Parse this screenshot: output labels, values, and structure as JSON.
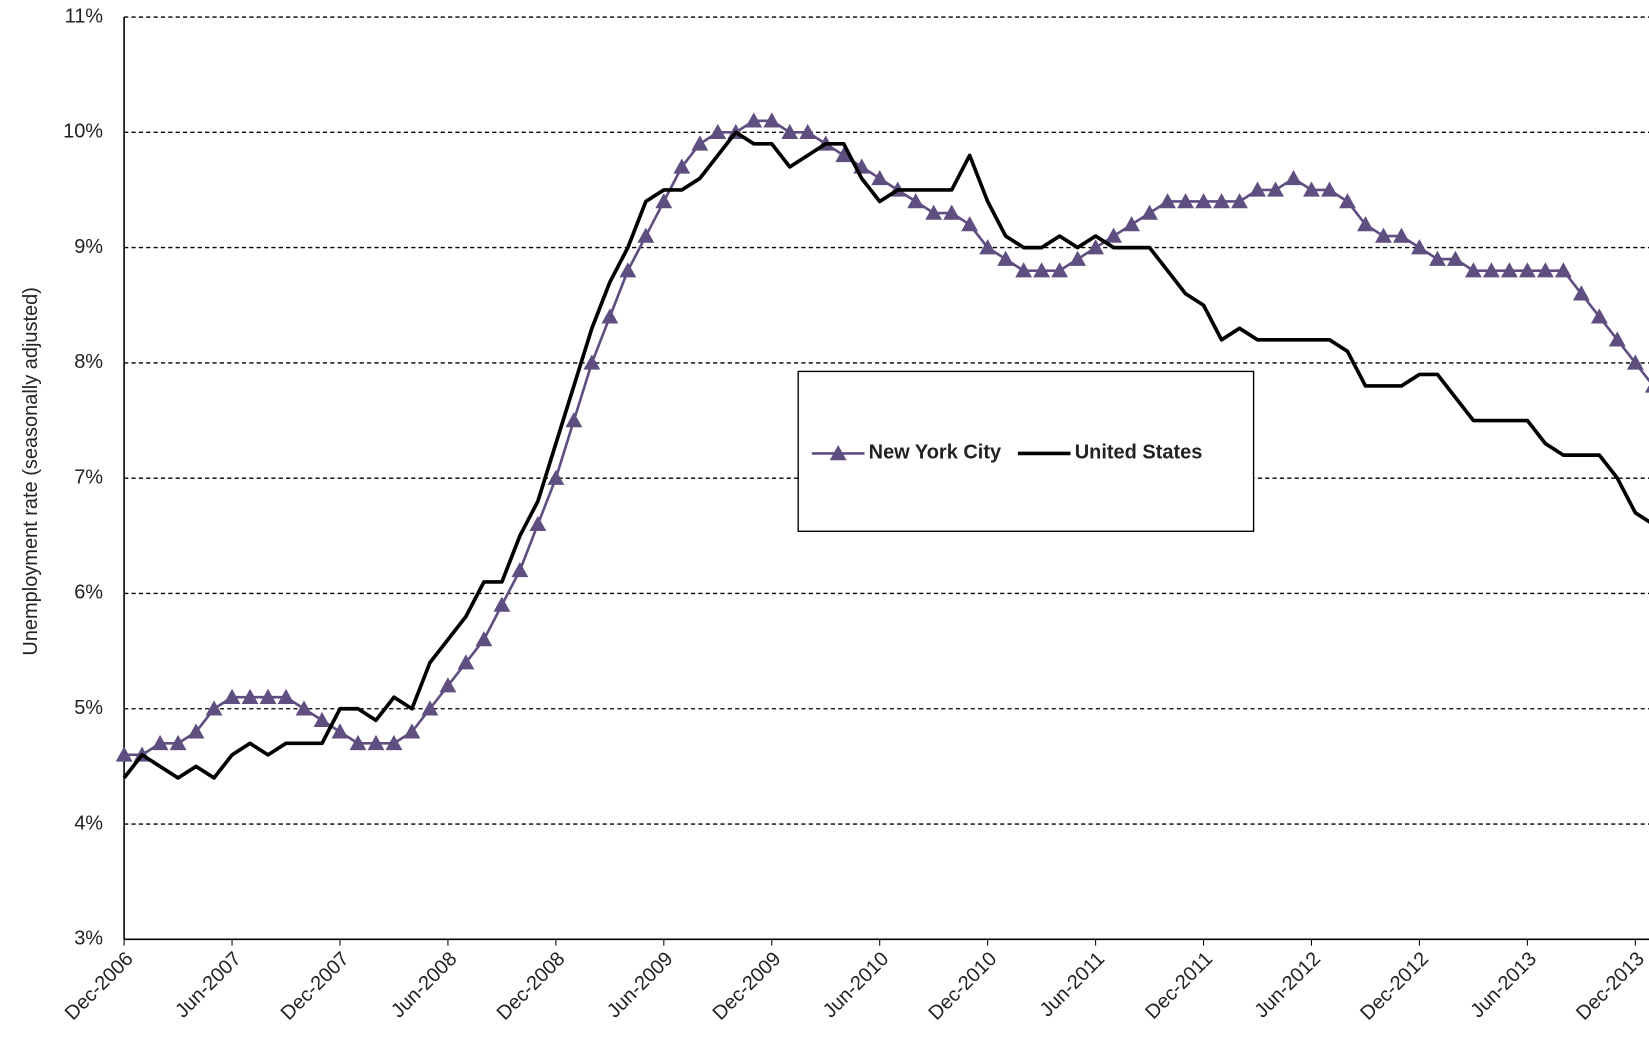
{
  "chart_data": {
    "type": "line",
    "y_label": "Unemployment rate (seasonally adjusted)",
    "categories": [
      "Dec-2006",
      null,
      null,
      null,
      null,
      null,
      "Jun-2007",
      null,
      null,
      null,
      null,
      null,
      "Dec-2007",
      null,
      null,
      null,
      null,
      null,
      "Jun-2008",
      null,
      null,
      null,
      null,
      null,
      "Dec-2008",
      null,
      null,
      null,
      null,
      null,
      "Jun-2009",
      null,
      null,
      null,
      null,
      null,
      "Dec-2009",
      null,
      null,
      null,
      null,
      null,
      "Jun-2010",
      null,
      null,
      null,
      null,
      null,
      "Dec-2010",
      null,
      null,
      null,
      null,
      null,
      "Jun-2011",
      null,
      null,
      null,
      null,
      null,
      "Dec-2011",
      null,
      null,
      null,
      null,
      null,
      "Jun-2012",
      null,
      null,
      null,
      null,
      null,
      "Dec-2012",
      null,
      null,
      null,
      null,
      null,
      "Jun-2013",
      null,
      null,
      null,
      null,
      null,
      "Dec-2013",
      null
    ],
    "series": [
      {
        "name": "New York City",
        "color": "#5f4f80",
        "marker": "triangle",
        "values": [
          4.6,
          4.6,
          4.7,
          4.7,
          4.8,
          5.0,
          5.1,
          5.1,
          5.1,
          5.1,
          5.0,
          4.9,
          4.8,
          4.7,
          4.7,
          4.7,
          4.8,
          5.0,
          5.2,
          5.4,
          5.6,
          5.9,
          6.2,
          6.6,
          7.0,
          7.5,
          8.0,
          8.4,
          8.8,
          9.1,
          9.4,
          9.7,
          9.9,
          10.0,
          10.0,
          10.1,
          10.1,
          10.0,
          10.0,
          9.9,
          9.8,
          9.7,
          9.6,
          9.5,
          9.4,
          9.3,
          9.3,
          9.2,
          9.0,
          8.9,
          8.8,
          8.8,
          8.8,
          8.9,
          9.0,
          9.1,
          9.2,
          9.3,
          9.4,
          9.4,
          9.4,
          9.4,
          9.4,
          9.5,
          9.5,
          9.6,
          9.5,
          9.5,
          9.4,
          9.2,
          9.1,
          9.1,
          9.0,
          8.9,
          8.9,
          8.8,
          8.8,
          8.8,
          8.8,
          8.8,
          8.8,
          8.6,
          8.4,
          8.2,
          8.0,
          7.8
        ]
      },
      {
        "name": "United States",
        "color": "#000000",
        "values": [
          4.4,
          4.6,
          4.5,
          4.4,
          4.5,
          4.4,
          4.6,
          4.7,
          4.6,
          4.7,
          4.7,
          4.7,
          5.0,
          5.0,
          4.9,
          5.1,
          5.0,
          5.4,
          5.6,
          5.8,
          6.1,
          6.1,
          6.5,
          6.8,
          7.3,
          7.8,
          8.3,
          8.7,
          9.0,
          9.4,
          9.5,
          9.5,
          9.6,
          9.8,
          10.0,
          9.9,
          9.9,
          9.7,
          9.8,
          9.9,
          9.9,
          9.6,
          9.4,
          9.5,
          9.5,
          9.5,
          9.5,
          9.8,
          9.4,
          9.1,
          9.0,
          9.0,
          9.1,
          9.0,
          9.1,
          9.0,
          9.0,
          9.0,
          8.8,
          8.6,
          8.5,
          8.2,
          8.3,
          8.2,
          8.2,
          8.2,
          8.2,
          8.2,
          8.1,
          7.8,
          7.8,
          7.8,
          7.9,
          7.9,
          7.7,
          7.5,
          7.5,
          7.5,
          7.5,
          7.3,
          7.2,
          7.2,
          7.2,
          7.0,
          6.7,
          6.6
        ]
      }
    ],
    "ylim": [
      3,
      11
    ],
    "yticks": [
      {
        "value": 3,
        "label": "3%"
      },
      {
        "value": 4,
        "label": "4%"
      },
      {
        "value": 5,
        "label": "5%"
      },
      {
        "value": 6,
        "label": "6%"
      },
      {
        "value": 7,
        "label": "7%"
      },
      {
        "value": 8,
        "label": "8%"
      },
      {
        "value": 9,
        "label": "9%"
      },
      {
        "value": 10,
        "label": "10%"
      },
      {
        "value": 11,
        "label": "11%"
      }
    ],
    "grid": true,
    "legend": "center"
  }
}
